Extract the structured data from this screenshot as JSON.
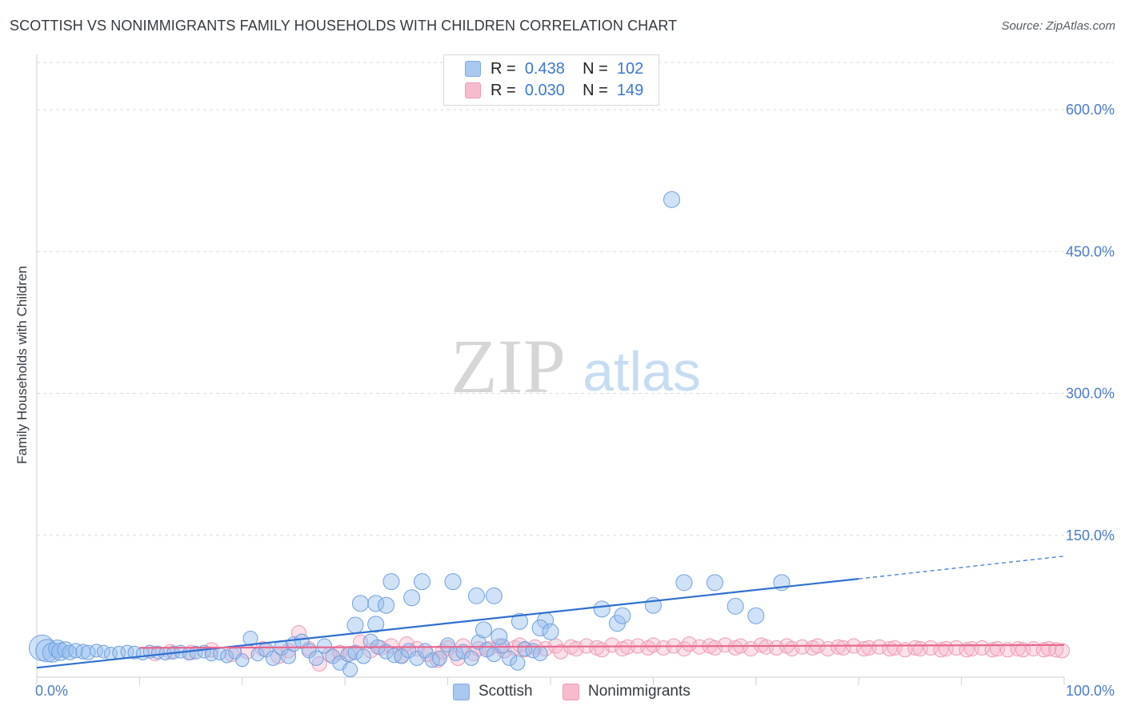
{
  "header": {
    "title": "SCOTTISH VS NONIMMIGRANTS FAMILY HOUSEHOLDS WITH CHILDREN CORRELATION CHART",
    "source": "Source: ZipAtlas.com"
  },
  "watermark": {
    "zip": "ZIP",
    "atlas": "atlas"
  },
  "stats": [
    {
      "r_label": "R =",
      "r_value": "0.438",
      "n_label": "N =",
      "n_value": "102",
      "color": "#a9c8f0",
      "border": "#7fa9e0"
    },
    {
      "r_label": "R =",
      "r_value": "0.030",
      "n_label": "N =",
      "n_value": "149",
      "color": "#f6bccd",
      "border": "#ee9ab3"
    }
  ],
  "colors": {
    "scottish_fill": "rgba(150,190,240,0.45)",
    "scottish_stroke": "#6f9fdc",
    "scottish_line": "#2e6fd0",
    "nonimm_fill": "rgba(246,180,200,0.40)",
    "nonimm_stroke": "#ee9ab3",
    "nonimm_line": "#e8688f",
    "grid": "#dcdcdc",
    "axis_label": "#4a7cc8"
  },
  "chart_data": {
    "type": "scatter",
    "title": "SCOTTISH VS NONIMMIGRANTS FAMILY HOUSEHOLDS WITH CHILDREN CORRELATION CHART",
    "xlabel": "",
    "ylabel": "Family Households with Children",
    "xlim": [
      0,
      100
    ],
    "ylim": [
      0,
      650
    ],
    "x_tick_labels": [
      "0.0%",
      "100.0%"
    ],
    "y_ticks": [
      {
        "value": 150,
        "label": "150.0%"
      },
      {
        "value": 300,
        "label": "300.0%"
      },
      {
        "value": 450,
        "label": "450.0%"
      },
      {
        "value": 600,
        "label": "600.0%"
      }
    ],
    "legend": [
      "Scottish",
      "Nonimmigrants"
    ],
    "series": [
      {
        "name": "Scottish",
        "trend": {
          "x0": 0,
          "y0": 10,
          "x1": 80,
          "y1": 104,
          "dashed_to_x": 100,
          "dashed_to_y": 128
        },
        "points": [
          [
            0.5,
            31,
            14
          ],
          [
            1.0,
            28,
            12
          ],
          [
            1.5,
            26,
            10
          ],
          [
            2.0,
            30,
            9
          ],
          [
            2.3,
            27,
            9
          ],
          [
            2.8,
            29,
            8
          ],
          [
            3.2,
            26,
            7
          ],
          [
            3.8,
            28,
            7
          ],
          [
            4.5,
            27,
            7
          ],
          [
            5.0,
            26,
            7
          ],
          [
            5.8,
            28,
            6
          ],
          [
            6.5,
            27,
            6
          ],
          [
            7.2,
            25,
            6
          ],
          [
            8.0,
            26,
            6
          ],
          [
            8.8,
            27,
            6
          ],
          [
            9.5,
            26,
            6
          ],
          [
            10.3,
            25,
            6
          ],
          [
            11.0,
            27,
            6
          ],
          [
            11.8,
            26,
            6
          ],
          [
            12.5,
            25,
            6
          ],
          [
            13.3,
            26,
            6
          ],
          [
            14.0,
            27,
            6
          ],
          [
            14.8,
            25,
            6
          ],
          [
            15.5,
            26,
            6
          ],
          [
            16.3,
            27,
            6
          ],
          [
            17.0,
            24,
            6
          ],
          [
            17.8,
            25,
            6
          ],
          [
            18.5,
            22,
            6
          ],
          [
            19.3,
            26,
            6
          ],
          [
            20.0,
            18,
            6
          ],
          [
            20.8,
            41,
            7
          ],
          [
            21.5,
            24,
            6
          ],
          [
            22.3,
            29,
            7
          ],
          [
            23.0,
            20,
            7
          ],
          [
            23.8,
            31,
            7
          ],
          [
            24.5,
            22,
            7
          ],
          [
            25.0,
            35,
            7
          ],
          [
            25.8,
            38,
            7
          ],
          [
            26.5,
            28,
            7
          ],
          [
            27.2,
            20,
            7
          ],
          [
            28.0,
            33,
            7
          ],
          [
            28.8,
            22,
            7
          ],
          [
            29.5,
            15,
            7
          ],
          [
            30.3,
            24,
            7
          ],
          [
            31.0,
            26,
            7
          ],
          [
            31.8,
            22,
            7
          ],
          [
            32.5,
            38,
            7
          ],
          [
            33.2,
            32,
            7
          ],
          [
            34.0,
            27,
            7
          ],
          [
            34.8,
            23,
            7
          ],
          [
            35.5,
            22,
            7
          ],
          [
            36.2,
            28,
            7
          ],
          [
            37.0,
            20,
            7
          ],
          [
            37.8,
            28,
            7
          ],
          [
            38.5,
            18,
            7
          ],
          [
            39.2,
            20,
            7
          ],
          [
            40.0,
            34,
            7
          ],
          [
            40.8,
            25,
            7
          ],
          [
            41.5,
            27,
            7
          ],
          [
            42.3,
            20,
            7
          ],
          [
            43.0,
            37,
            7
          ],
          [
            43.8,
            29,
            7
          ],
          [
            44.5,
            24,
            7
          ],
          [
            45.3,
            33,
            7
          ],
          [
            46.0,
            20,
            7
          ],
          [
            46.8,
            15,
            7
          ],
          [
            47.5,
            30,
            7
          ],
          [
            48.3,
            28,
            7
          ],
          [
            49.0,
            25,
            7
          ],
          [
            30.5,
            8,
            7
          ],
          [
            31.0,
            55,
            8
          ],
          [
            33.0,
            56,
            8
          ],
          [
            31.5,
            78,
            8
          ],
          [
            33.0,
            78,
            8
          ],
          [
            34.5,
            101,
            8
          ],
          [
            37.5,
            101,
            8
          ],
          [
            40.5,
            101,
            8
          ],
          [
            34.0,
            76,
            8
          ],
          [
            36.5,
            84,
            8
          ],
          [
            42.8,
            86,
            8
          ],
          [
            44.5,
            86,
            8
          ],
          [
            43.5,
            50,
            8
          ],
          [
            45.0,
            43,
            8
          ],
          [
            47.0,
            59,
            8
          ],
          [
            49.5,
            60,
            8
          ],
          [
            49.0,
            52,
            8
          ],
          [
            50.0,
            48,
            8
          ],
          [
            55.0,
            72,
            8
          ],
          [
            56.5,
            57,
            8
          ],
          [
            57.0,
            65,
            8
          ],
          [
            60.0,
            76,
            8
          ],
          [
            63.0,
            100,
            8
          ],
          [
            66.0,
            100,
            8
          ],
          [
            68.0,
            75,
            8
          ],
          [
            70.0,
            65,
            8
          ],
          [
            72.5,
            100,
            8
          ],
          [
            61.8,
            505,
            8
          ]
        ]
      },
      {
        "name": "Nonimmigrants",
        "trend": {
          "x0": 10,
          "y0": 31,
          "x1": 100,
          "y1": 34
        },
        "points": [
          [
            11.5,
            25,
            7
          ],
          [
            13.0,
            27,
            7
          ],
          [
            15.0,
            26,
            7
          ],
          [
            17.0,
            29,
            7
          ],
          [
            19.0,
            24,
            7
          ],
          [
            20.5,
            27,
            7
          ],
          [
            22.0,
            30,
            7
          ],
          [
            23.5,
            22,
            7
          ],
          [
            24.5,
            28,
            7
          ],
          [
            25.5,
            47,
            7
          ],
          [
            26.5,
            30,
            7
          ],
          [
            27.5,
            14,
            7
          ],
          [
            28.5,
            24,
            7
          ],
          [
            29.5,
            26,
            7
          ],
          [
            30.5,
            25,
            7
          ],
          [
            31.5,
            37,
            7
          ],
          [
            32.5,
            28,
            7
          ],
          [
            33.5,
            31,
            7
          ],
          [
            34.5,
            33,
            7
          ],
          [
            35.5,
            23,
            7
          ],
          [
            36.0,
            35,
            7
          ],
          [
            37.0,
            30,
            7
          ],
          [
            38.0,
            24,
            7
          ],
          [
            39.0,
            18,
            7
          ],
          [
            39.5,
            27,
            7
          ],
          [
            40.0,
            31,
            7
          ],
          [
            41.0,
            20,
            7
          ],
          [
            41.5,
            33,
            7
          ],
          [
            42.5,
            25,
            7
          ],
          [
            43.0,
            30,
            7
          ],
          [
            44.0,
            30,
            7
          ],
          [
            45.0,
            33,
            7
          ],
          [
            45.5,
            28,
            7
          ],
          [
            46.5,
            31,
            7
          ],
          [
            47.0,
            34,
            7
          ],
          [
            47.5,
            29,
            7
          ],
          [
            48.5,
            32,
            7
          ],
          [
            49.5,
            30,
            7
          ],
          [
            50.5,
            33,
            7
          ],
          [
            51.0,
            27,
            7
          ],
          [
            52.0,
            32,
            7
          ],
          [
            52.5,
            30,
            7
          ],
          [
            53.5,
            33,
            7
          ],
          [
            54.5,
            31,
            7
          ],
          [
            55.0,
            29,
            7
          ],
          [
            56.0,
            34,
            7
          ],
          [
            57.0,
            30,
            7
          ],
          [
            57.5,
            32,
            7
          ],
          [
            58.5,
            33,
            7
          ],
          [
            59.5,
            31,
            7
          ],
          [
            60.0,
            34,
            7
          ],
          [
            61.0,
            31,
            7
          ],
          [
            62.0,
            33,
            7
          ],
          [
            63.0,
            30,
            7
          ],
          [
            63.5,
            35,
            7
          ],
          [
            64.5,
            32,
            7
          ],
          [
            65.5,
            33,
            7
          ],
          [
            66.0,
            31,
            7
          ],
          [
            67.0,
            34,
            7
          ],
          [
            68.0,
            31,
            7
          ],
          [
            68.5,
            33,
            7
          ],
          [
            69.5,
            30,
            7
          ],
          [
            70.5,
            34,
            7
          ],
          [
            71.0,
            32,
            7
          ],
          [
            72.0,
            31,
            7
          ],
          [
            73.0,
            33,
            7
          ],
          [
            73.5,
            30,
            7
          ],
          [
            74.5,
            32,
            7
          ],
          [
            75.5,
            31,
            7
          ],
          [
            76.0,
            33,
            7
          ],
          [
            77.0,
            30,
            7
          ],
          [
            78.0,
            32,
            7
          ],
          [
            78.5,
            31,
            7
          ],
          [
            79.5,
            33,
            7
          ],
          [
            80.5,
            30,
            7
          ],
          [
            81.0,
            31,
            7
          ],
          [
            82.0,
            32,
            7
          ],
          [
            83.0,
            30,
            7
          ],
          [
            83.5,
            31,
            7
          ],
          [
            84.5,
            29,
            7
          ],
          [
            85.5,
            31,
            7
          ],
          [
            86.0,
            30,
            7
          ],
          [
            87.0,
            31,
            7
          ],
          [
            88.0,
            29,
            7
          ],
          [
            88.5,
            30,
            7
          ],
          [
            89.5,
            31,
            7
          ],
          [
            90.5,
            29,
            7
          ],
          [
            91.0,
            30,
            7
          ],
          [
            92.0,
            31,
            7
          ],
          [
            93.0,
            29,
            7
          ],
          [
            93.5,
            30,
            7
          ],
          [
            94.5,
            29,
            7
          ],
          [
            95.5,
            30,
            7
          ],
          [
            96.0,
            29,
            7
          ],
          [
            97.0,
            30,
            7
          ],
          [
            98.0,
            29,
            7
          ],
          [
            98.5,
            30,
            7
          ],
          [
            99.2,
            29,
            7
          ],
          [
            99.8,
            28,
            7
          ]
        ]
      }
    ]
  }
}
